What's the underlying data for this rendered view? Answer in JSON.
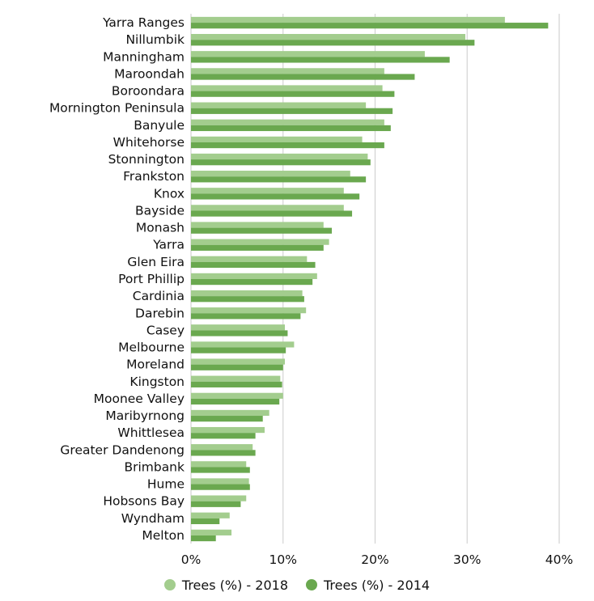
{
  "chart_data": {
    "type": "bar",
    "orientation": "horizontal",
    "categories": [
      "Yarra Ranges",
      "Nillumbik",
      "Manningham",
      "Maroondah",
      "Boroondara",
      "Mornington Peninsula",
      "Banyule",
      "Whitehorse",
      "Stonnington",
      "Frankston",
      "Knox",
      "Bayside",
      "Monash",
      "Yarra",
      "Glen Eira",
      "Port Phillip",
      "Cardinia",
      "Darebin",
      "Casey",
      "Melbourne",
      "Moreland",
      "Kingston",
      "Moonee Valley",
      "Maribyrnong",
      "Whittlesea",
      "Greater Dandenong",
      "Brimbank",
      "Hume",
      "Hobsons Bay",
      "Wyndham",
      "Melton"
    ],
    "series": [
      {
        "name": "Trees (%) - 2018",
        "color": "#a3cd8e",
        "values": [
          34.1,
          29.8,
          25.4,
          21.0,
          20.8,
          19.0,
          21.0,
          18.6,
          19.2,
          17.3,
          16.6,
          16.6,
          14.4,
          15.0,
          12.6,
          13.7,
          12.1,
          12.5,
          10.2,
          11.2,
          10.2,
          9.7,
          10.0,
          8.5,
          8.0,
          6.7,
          6.0,
          6.3,
          6.0,
          4.2,
          4.4
        ]
      },
      {
        "name": "Trees (%) - 2014",
        "color": "#6aa84f",
        "values": [
          38.8,
          30.8,
          28.1,
          24.3,
          22.1,
          21.9,
          21.7,
          21.0,
          19.5,
          19.0,
          18.3,
          17.5,
          15.3,
          14.4,
          13.5,
          13.2,
          12.3,
          11.9,
          10.5,
          10.3,
          10.0,
          9.9,
          9.6,
          7.8,
          7.0,
          7.0,
          6.4,
          6.4,
          5.4,
          3.1,
          2.7
        ]
      }
    ],
    "xlim": [
      0,
      40
    ],
    "xticks": [
      "0%",
      "10%",
      "20%",
      "30%",
      "40%"
    ],
    "grid": true,
    "legend_position": "bottom",
    "title": "",
    "xlabel": "",
    "ylabel": ""
  },
  "legend": {
    "items": [
      {
        "label": "Trees (%) - 2018",
        "color": "#a3cd8e"
      },
      {
        "label": "Trees (%) - 2014",
        "color": "#6aa84f"
      }
    ]
  }
}
